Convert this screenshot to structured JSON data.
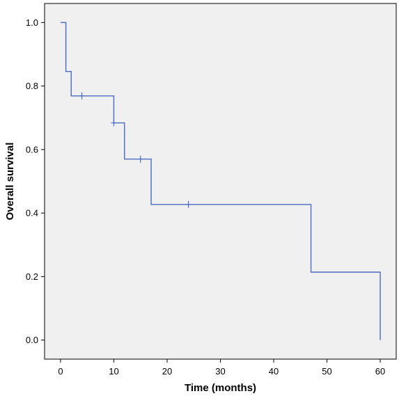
{
  "chart_data": {
    "type": "line",
    "title": "",
    "xlabel": "Time (months)",
    "ylabel": "Overall survival",
    "xlim": [
      -3,
      63
    ],
    "ylim": [
      -0.06,
      1.06
    ],
    "x_ticks": [
      0,
      10,
      20,
      30,
      40,
      50,
      60
    ],
    "y_ticks": [
      0.0,
      0.2,
      0.4,
      0.6,
      0.8,
      1.0
    ],
    "grid": false,
    "line_style": "step",
    "colors": {
      "line": "#4a6bc0",
      "plot_bg": "#f0f0f0",
      "frame": "#000000"
    },
    "steps": [
      {
        "x": 0,
        "y": 1.0
      },
      {
        "x": 1,
        "y": 0.846
      },
      {
        "x": 2,
        "y": 0.769
      },
      {
        "x": 10,
        "y": 0.684
      },
      {
        "x": 12,
        "y": 0.57
      },
      {
        "x": 17,
        "y": 0.427
      },
      {
        "x": 47,
        "y": 0.214
      },
      {
        "x": 60,
        "y": 0.0
      }
    ],
    "censored": [
      {
        "x": 4,
        "y": 0.769
      },
      {
        "x": 10,
        "y": 0.684
      },
      {
        "x": 15,
        "y": 0.57
      },
      {
        "x": 24,
        "y": 0.427
      }
    ]
  }
}
